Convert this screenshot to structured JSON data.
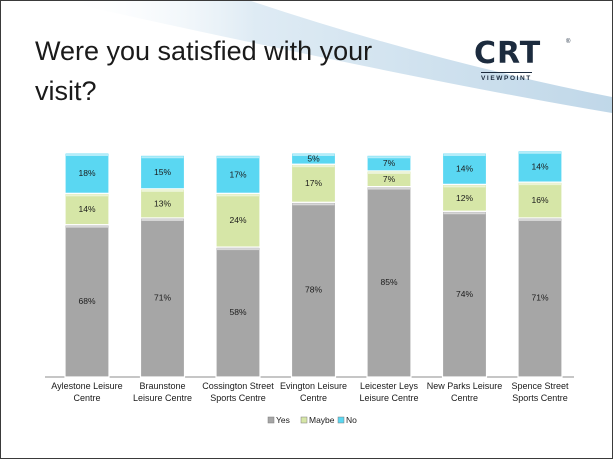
{
  "slide": {
    "title": "Were you satisfied with your visit?",
    "logo": {
      "main": "CRT",
      "registered": "®",
      "sub": "VIEWPOINT"
    }
  },
  "chart_data": {
    "type": "bar",
    "stacked": true,
    "categories": [
      [
        "Aylestone Leisure",
        "Centre"
      ],
      [
        "Braunstone",
        "Leisure Centre"
      ],
      [
        "Cossington Street",
        "Sports Centre"
      ],
      [
        "Evington Leisure",
        "Centre"
      ],
      [
        "Leicester Leys",
        "Leisure Centre"
      ],
      [
        "New Parks Leisure",
        "Centre"
      ],
      [
        "Spence Street",
        "Sports Centre"
      ]
    ],
    "series": [
      {
        "name": "Yes",
        "color": "#a6a6a6",
        "values": [
          68,
          71,
          58,
          78,
          85,
          74,
          71
        ]
      },
      {
        "name": "Maybe",
        "color": "#d6e6a7",
        "values": [
          14,
          13,
          24,
          17,
          7,
          12,
          16
        ]
      },
      {
        "name": "No",
        "color": "#5ad7f2",
        "values": [
          18,
          15,
          17,
          5,
          7,
          14,
          14
        ]
      }
    ],
    "data_labels": [
      [
        "68%",
        "14%",
        "18%"
      ],
      [
        "71%",
        "13%",
        "15%"
      ],
      [
        "58%",
        "24%",
        "17%"
      ],
      [
        "78%",
        "17%",
        "5%"
      ],
      [
        "85%",
        "7%",
        "7%"
      ],
      [
        "74%",
        "12%",
        "14%"
      ],
      [
        "71%",
        "16%",
        "14%"
      ]
    ],
    "ylim": [
      0,
      100
    ],
    "grid": false,
    "legend_position": "bottom"
  }
}
